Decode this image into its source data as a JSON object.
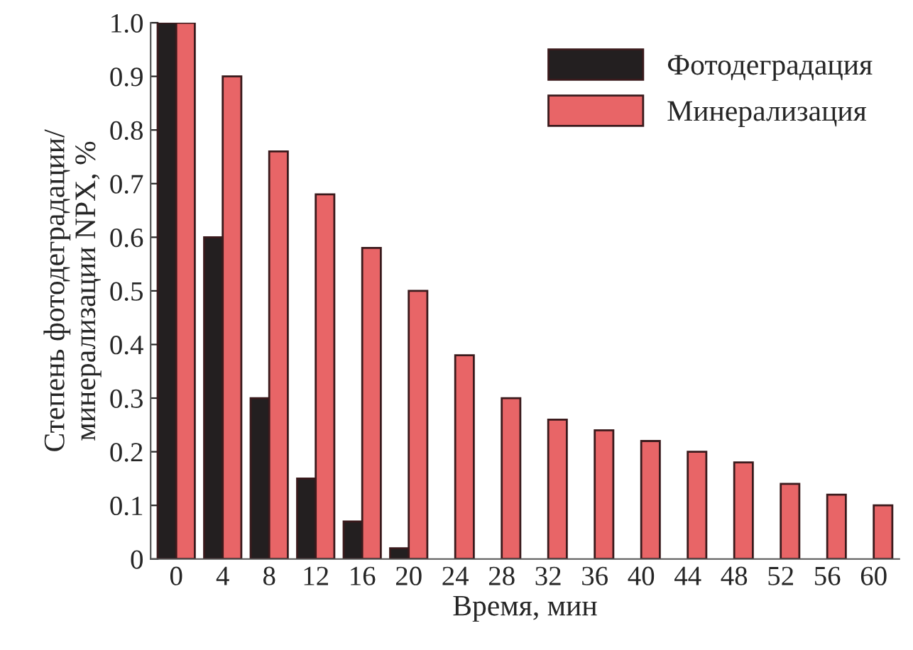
{
  "chart_data": {
    "type": "bar",
    "xlabel": "Время, мин",
    "ylabel": "Степень фотодеградации/\nминерализации NPX, %",
    "categories": [
      "0",
      "4",
      "8",
      "12",
      "16",
      "20",
      "24",
      "28",
      "32",
      "36",
      "40",
      "44",
      "48",
      "52",
      "56",
      "60"
    ],
    "series": [
      {
        "name": "Фотодеградация",
        "color": "#231f20",
        "values": [
          1.0,
          0.6,
          0.3,
          0.15,
          0.07,
          0.02,
          null,
          null,
          null,
          null,
          null,
          null,
          null,
          null,
          null,
          null
        ]
      },
      {
        "name": "Минерализация",
        "color": "#e86567",
        "values": [
          1.0,
          0.9,
          0.76,
          0.68,
          0.58,
          0.5,
          0.38,
          0.3,
          0.26,
          0.24,
          0.22,
          0.2,
          0.18,
          0.14,
          0.12,
          0.1
        ]
      }
    ],
    "ylim": [
      0,
      1.0
    ],
    "yticks": [
      {
        "value": 0,
        "label": "0"
      },
      {
        "value": 0.1,
        "label": "0.1"
      },
      {
        "value": 0.2,
        "label": "0.2"
      },
      {
        "value": 0.3,
        "label": "0.3"
      },
      {
        "value": 0.4,
        "label": "0.4"
      },
      {
        "value": 0.5,
        "label": "0.5"
      },
      {
        "value": 0.6,
        "label": "0.6"
      },
      {
        "value": 0.7,
        "label": "0.7"
      },
      {
        "value": 0.8,
        "label": "0.8"
      },
      {
        "value": 0.9,
        "label": "0.9"
      },
      {
        "value": 1.0,
        "label": "1.0"
      }
    ],
    "legend": "top right",
    "grid": false
  }
}
